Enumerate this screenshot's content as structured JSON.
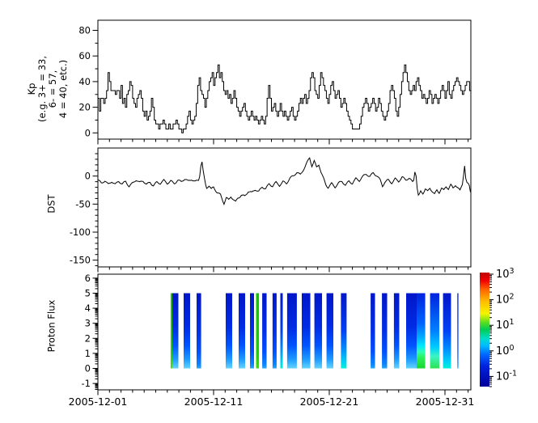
{
  "figure": {
    "background": "#ffffff",
    "axis_color": "#000000",
    "series_color": "#000000"
  },
  "x_axis": {
    "tick_labels": [
      "2005-12-01",
      "2005-12-11",
      "2005-12-21",
      "2005-12-31"
    ],
    "tick_days": [
      0,
      10,
      20,
      30
    ],
    "minor_tick_every_days": 1,
    "range_days": [
      0,
      32.24
    ]
  },
  "chart_data": [
    {
      "type": "line",
      "subtype": "step",
      "name": "kp-index",
      "ylabel_lines": [
        "Kp",
        "(e.g. 3+ = 33,",
        "6- = 57,",
        "4 = 40, etc.)"
      ],
      "yticks": [
        0,
        20,
        40,
        60,
        80
      ],
      "ytick_minor": [
        10,
        30,
        50,
        70
      ],
      "ylim": [
        -4.9,
        87.9
      ],
      "x_start_day": 0,
      "step_hours": 3,
      "values": [
        27,
        17,
        27,
        27,
        23,
        27,
        33,
        47,
        40,
        33,
        33,
        33,
        30,
        33,
        33,
        27,
        37,
        23,
        27,
        20,
        30,
        33,
        40,
        37,
        27,
        23,
        20,
        27,
        30,
        33,
        27,
        17,
        13,
        17,
        10,
        13,
        17,
        27,
        20,
        10,
        7,
        7,
        3,
        7,
        7,
        10,
        7,
        3,
        3,
        7,
        3,
        3,
        7,
        7,
        10,
        7,
        3,
        3,
        0,
        3,
        3,
        7,
        13,
        17,
        10,
        7,
        10,
        13,
        23,
        37,
        43,
        33,
        30,
        27,
        20,
        27,
        33,
        40,
        43,
        47,
        37,
        43,
        47,
        53,
        43,
        47,
        40,
        33,
        30,
        33,
        27,
        30,
        23,
        27,
        33,
        27,
        20,
        17,
        13,
        17,
        20,
        23,
        17,
        13,
        10,
        13,
        17,
        13,
        10,
        13,
        10,
        7,
        10,
        13,
        10,
        7,
        13,
        27,
        37,
        27,
        17,
        20,
        23,
        17,
        13,
        17,
        23,
        17,
        13,
        17,
        13,
        10,
        13,
        17,
        20,
        13,
        10,
        13,
        17,
        23,
        27,
        23,
        27,
        30,
        23,
        27,
        33,
        43,
        47,
        43,
        33,
        30,
        27,
        37,
        47,
        43,
        37,
        33,
        27,
        23,
        30,
        37,
        40,
        33,
        27,
        30,
        33,
        27,
        20,
        23,
        27,
        23,
        17,
        13,
        10,
        7,
        3,
        3,
        3,
        3,
        3,
        7,
        13,
        20,
        23,
        27,
        23,
        17,
        20,
        23,
        27,
        23,
        17,
        20,
        27,
        23,
        17,
        13,
        10,
        13,
        17,
        23,
        33,
        37,
        33,
        27,
        17,
        13,
        20,
        30,
        40,
        47,
        53,
        47,
        40,
        33,
        30,
        33,
        37,
        33,
        40,
        43,
        37,
        33,
        27,
        30,
        27,
        23,
        27,
        33,
        30,
        23,
        27,
        30,
        27,
        23,
        27,
        33,
        37,
        33,
        27,
        33,
        40,
        30,
        27,
        33,
        37,
        40,
        43,
        40,
        37,
        33,
        30,
        33,
        37,
        40,
        40,
        33
      ]
    },
    {
      "type": "line",
      "name": "dst-index",
      "ylabel": "DST",
      "yticks": [
        0,
        -50,
        -100,
        -150
      ],
      "ytick_minor_step": 10,
      "ylim": [
        50,
        -162
      ],
      "anchors": [
        [
          0,
          -8
        ],
        [
          0.3,
          -13
        ],
        [
          0.6,
          -7
        ],
        [
          0.9,
          -14
        ],
        [
          1.2,
          -9
        ],
        [
          1.5,
          -16
        ],
        [
          1.8,
          -10
        ],
        [
          2.1,
          -15
        ],
        [
          2.4,
          -9
        ],
        [
          2.7,
          -17
        ],
        [
          3,
          -12
        ],
        [
          3.3,
          -7
        ],
        [
          3.6,
          -13
        ],
        [
          3.9,
          -9
        ],
        [
          4.2,
          -15
        ],
        [
          4.5,
          -10
        ],
        [
          4.8,
          -16
        ],
        [
          5.1,
          -11
        ],
        [
          5.4,
          -14
        ],
        [
          5.7,
          -9
        ],
        [
          6,
          -13
        ],
        [
          6.3,
          -8
        ],
        [
          6.6,
          -12
        ],
        [
          6.9,
          -7
        ],
        [
          7.2,
          -11
        ],
        [
          7.5,
          -6
        ],
        [
          7.8,
          -10
        ],
        [
          8.1,
          -5
        ],
        [
          8.4,
          -9
        ],
        [
          8.7,
          -6
        ],
        [
          8.85,
          5
        ],
        [
          8.95,
          33
        ],
        [
          9.1,
          8
        ],
        [
          9.25,
          -12
        ],
        [
          9.4,
          -22
        ],
        [
          9.6,
          -18
        ],
        [
          9.8,
          -24
        ],
        [
          10,
          -19
        ],
        [
          10.3,
          -28
        ],
        [
          10.6,
          -33
        ],
        [
          10.9,
          -49
        ],
        [
          11.1,
          -40
        ],
        [
          11.3,
          -44
        ],
        [
          11.5,
          -37
        ],
        [
          11.7,
          -42
        ],
        [
          11.9,
          -46
        ],
        [
          12.1,
          -38
        ],
        [
          12.4,
          -33
        ],
        [
          12.7,
          -36
        ],
        [
          13,
          -28
        ],
        [
          13.3,
          -31
        ],
        [
          13.6,
          -24
        ],
        [
          13.9,
          -27
        ],
        [
          14.2,
          -18
        ],
        [
          14.5,
          -22
        ],
        [
          14.8,
          -15
        ],
        [
          15.1,
          -19
        ],
        [
          15.4,
          -12
        ],
        [
          15.7,
          -16
        ],
        [
          16,
          -9
        ],
        [
          16.3,
          -12
        ],
        [
          16.6,
          -4
        ],
        [
          16.9,
          -1
        ],
        [
          17.2,
          6
        ],
        [
          17.5,
          2
        ],
        [
          17.8,
          14
        ],
        [
          18.05,
          24
        ],
        [
          18.3,
          33
        ],
        [
          18.5,
          18
        ],
        [
          18.7,
          26
        ],
        [
          18.9,
          14
        ],
        [
          19.1,
          20
        ],
        [
          19.3,
          6
        ],
        [
          19.5,
          -4
        ],
        [
          19.7,
          -14
        ],
        [
          19.9,
          -19
        ],
        [
          20.2,
          -13
        ],
        [
          20.5,
          -20
        ],
        [
          20.8,
          -14
        ],
        [
          21.1,
          -10
        ],
        [
          21.4,
          -16
        ],
        [
          21.7,
          -8
        ],
        [
          22,
          -12
        ],
        [
          22.3,
          -5
        ],
        [
          22.6,
          -9
        ],
        [
          22.9,
          -2
        ],
        [
          23.2,
          4
        ],
        [
          23.5,
          0
        ],
        [
          23.8,
          7
        ],
        [
          24.1,
          1
        ],
        [
          24.4,
          -8
        ],
        [
          24.6,
          -19
        ],
        [
          24.8,
          -12
        ],
        [
          25.1,
          -7
        ],
        [
          25.4,
          -11
        ],
        [
          25.7,
          -4
        ],
        [
          26,
          -9
        ],
        [
          26.3,
          -3
        ],
        [
          26.6,
          -8
        ],
        [
          26.9,
          -4
        ],
        [
          27.2,
          -10
        ],
        [
          27.38,
          -3
        ],
        [
          27.44,
          36
        ],
        [
          27.52,
          -8
        ],
        [
          27.62,
          -24
        ],
        [
          27.72,
          -37
        ],
        [
          27.9,
          -27
        ],
        [
          28.1,
          -31
        ],
        [
          28.3,
          -24
        ],
        [
          28.5,
          -29
        ],
        [
          28.7,
          -22
        ],
        [
          28.9,
          -27
        ],
        [
          29.1,
          -32
        ],
        [
          29.3,
          -24
        ],
        [
          29.5,
          -28
        ],
        [
          29.7,
          -21
        ],
        [
          29.9,
          -26
        ],
        [
          30.1,
          -19
        ],
        [
          30.3,
          -24
        ],
        [
          30.5,
          -17
        ],
        [
          30.7,
          -22
        ],
        [
          30.9,
          -15
        ],
        [
          31.1,
          -20
        ],
        [
          31.3,
          -25
        ],
        [
          31.5,
          -13
        ],
        [
          31.65,
          10
        ],
        [
          31.72,
          23
        ],
        [
          31.8,
          -5
        ],
        [
          31.95,
          -18
        ],
        [
          32.05,
          -12
        ],
        [
          32.24,
          -33
        ]
      ]
    },
    {
      "type": "heatmap",
      "name": "proton-flux",
      "ylabel": "Proton Flux",
      "yticks": [
        -1,
        0,
        1,
        2,
        3,
        4,
        5,
        6
      ],
      "ylim": [
        -1.41,
        6.27
      ],
      "bar_y_range": [
        0,
        5
      ],
      "bars": [
        [
          6.29,
          6.43,
          "green"
        ],
        [
          6.43,
          6.96,
          "blue_light"
        ],
        [
          7.41,
          7.97,
          "blue_light"
        ],
        [
          8.53,
          8.92,
          "blue"
        ],
        [
          11.05,
          11.61,
          "blue_light"
        ],
        [
          12.17,
          12.73,
          "blue_light"
        ],
        [
          13.15,
          13.5,
          "blue"
        ],
        [
          13.67,
          13.92,
          "green"
        ],
        [
          14.2,
          14.58,
          "blue"
        ],
        [
          15.1,
          15.45,
          "blue"
        ],
        [
          15.77,
          15.98,
          "cyan"
        ],
        [
          16.36,
          17.2,
          "blue_light"
        ],
        [
          17.62,
          18.36,
          "blue_light"
        ],
        [
          18.71,
          19.37,
          "blue_light"
        ],
        [
          19.76,
          20.35,
          "blue_light"
        ],
        [
          21.01,
          21.5,
          "cyan"
        ],
        [
          23.57,
          23.95,
          "blue"
        ],
        [
          24.55,
          25.0,
          "blue"
        ],
        [
          25.59,
          26.05,
          "blue_light"
        ],
        [
          26.64,
          27.55,
          "blue_light"
        ],
        [
          27.55,
          28.29,
          "green_blob"
        ],
        [
          28.71,
          29.51,
          "green_cyan"
        ],
        [
          29.83,
          30.52,
          "cyan"
        ],
        [
          31.07,
          31.16,
          "blue"
        ]
      ],
      "gradients": {
        "blue": [
          [
            0,
            "#0016c8"
          ],
          [
            0.5,
            "#0030e8"
          ],
          [
            0.78,
            "#0050ff"
          ],
          [
            0.95,
            "#0d86ff"
          ],
          [
            1,
            "#27a8ff"
          ]
        ],
        "blue_light": [
          [
            0,
            "#0016c8"
          ],
          [
            0.45,
            "#002ce4"
          ],
          [
            0.7,
            "#0055ff"
          ],
          [
            0.88,
            "#1e9bff"
          ],
          [
            1,
            "#62d4ff"
          ]
        ],
        "cyan": [
          [
            0,
            "#0016c8"
          ],
          [
            0.5,
            "#0040f4"
          ],
          [
            0.75,
            "#0090ff"
          ],
          [
            0.92,
            "#00d4f4"
          ],
          [
            1,
            "#00f0d8"
          ]
        ],
        "green": [
          [
            0,
            "#11c400"
          ],
          [
            0.8,
            "#16d400"
          ],
          [
            1,
            "#3ae000"
          ]
        ],
        "green_blob": [
          [
            0,
            "#0022dd"
          ],
          [
            0.4,
            "#0063ff"
          ],
          [
            0.58,
            "#00aaff"
          ],
          [
            0.7,
            "#00e6ff"
          ],
          [
            0.78,
            "#2dffb4"
          ],
          [
            0.86,
            "#2bf05a"
          ],
          [
            1,
            "#16d62e"
          ]
        ],
        "green_cyan": [
          [
            0,
            "#0022dd"
          ],
          [
            0.5,
            "#0080ff"
          ],
          [
            0.72,
            "#00ccff"
          ],
          [
            0.84,
            "#3cf5c3"
          ],
          [
            1,
            "#2ee24e"
          ]
        ]
      }
    }
  ],
  "colorbar": {
    "scale": "log",
    "tick_exponents": [
      3,
      2,
      1,
      0,
      -1
    ],
    "tick_base": "10",
    "exponent_range": [
      3.06,
      -1.41
    ],
    "stops": [
      [
        0,
        "#c00000"
      ],
      [
        0.07,
        "#f00000"
      ],
      [
        0.15,
        "#ff6600"
      ],
      [
        0.25,
        "#ffbb00"
      ],
      [
        0.36,
        "#f5f500"
      ],
      [
        0.44,
        "#55dd22"
      ],
      [
        0.5,
        "#00cc55"
      ],
      [
        0.58,
        "#00ddcc"
      ],
      [
        0.64,
        "#00bbff"
      ],
      [
        0.72,
        "#0066ff"
      ],
      [
        0.82,
        "#0022dd"
      ],
      [
        1,
        "#000099"
      ]
    ]
  }
}
